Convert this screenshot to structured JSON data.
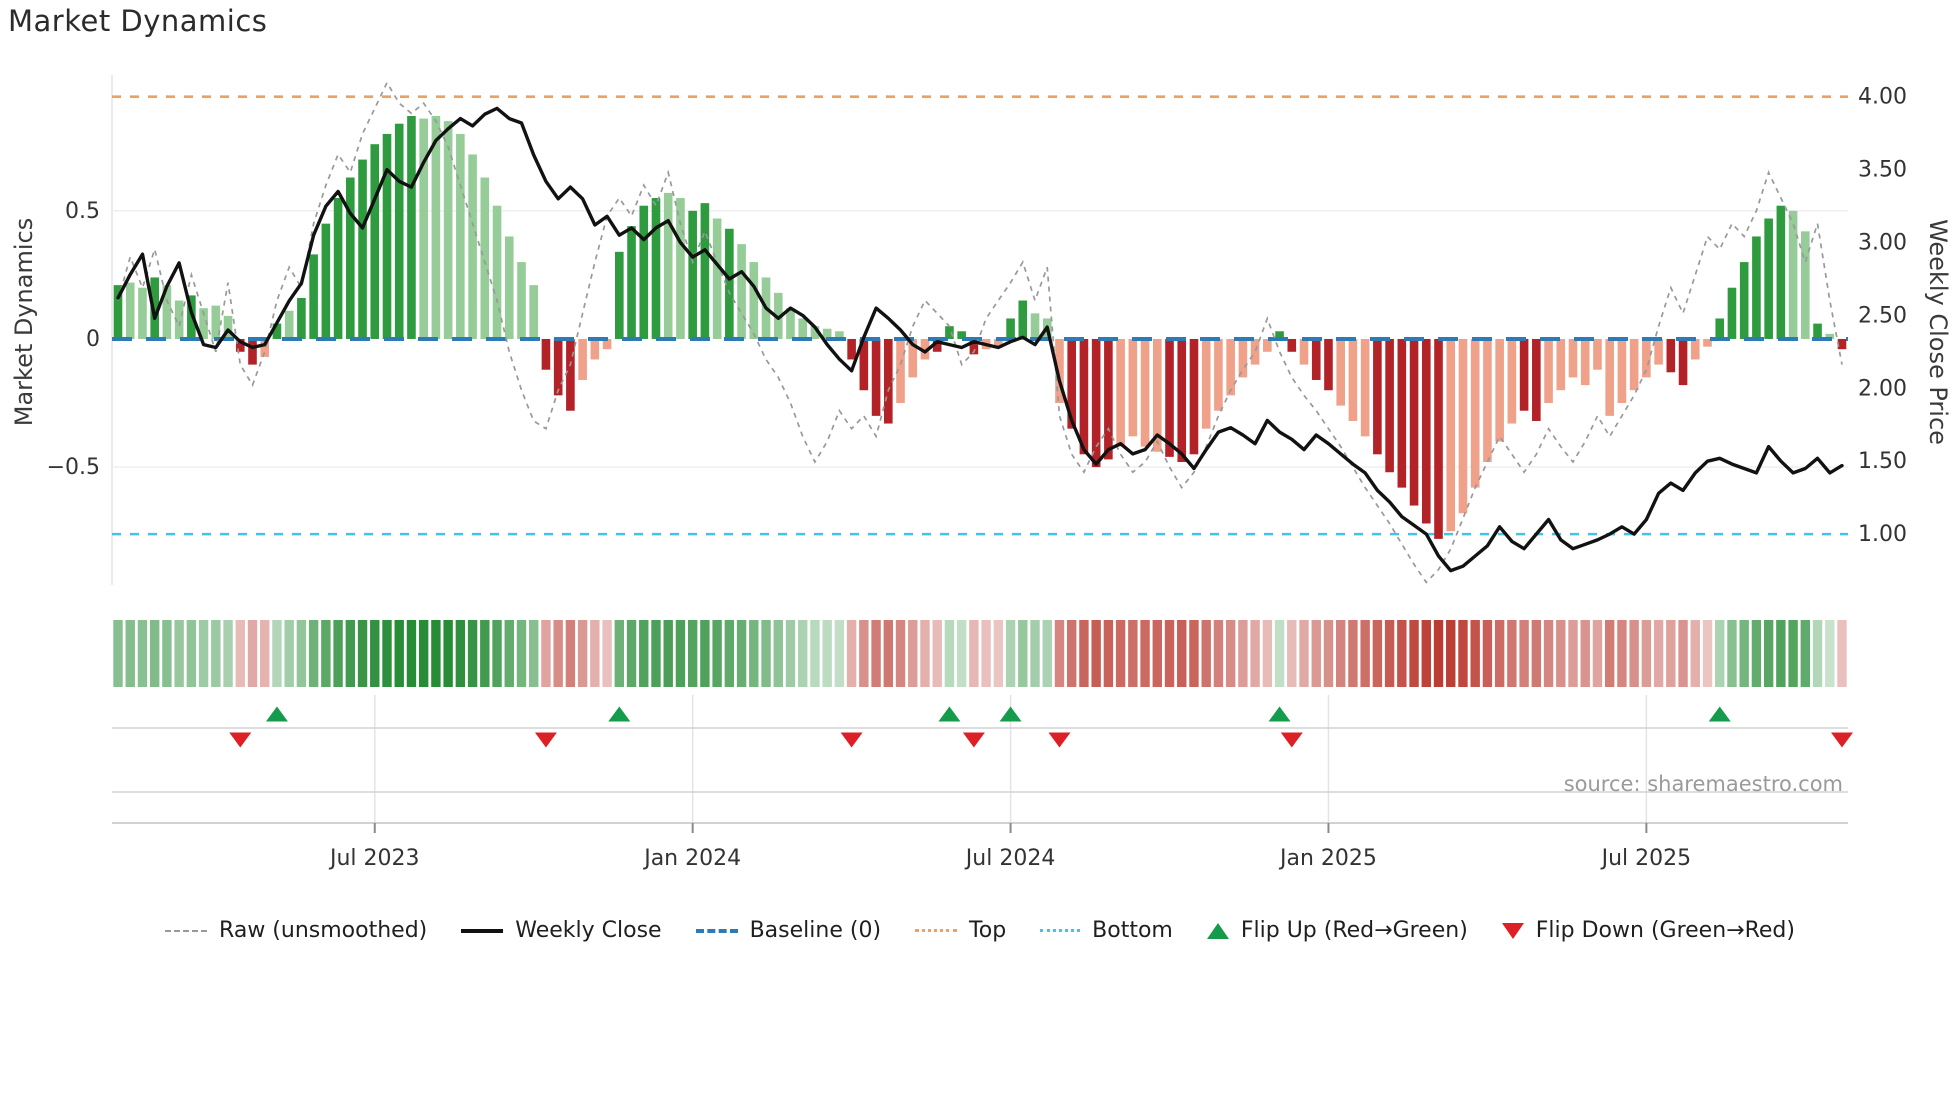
{
  "title": "Market Dynamics",
  "source_note": "source: sharemaestro.com",
  "axes": {
    "left_label": "Market Dynamics",
    "right_label": "Weekly Close Price",
    "left_ticks": [
      {
        "label": "0.5",
        "value": 0.5
      },
      {
        "label": "0",
        "value": 0
      },
      {
        "label": "−0.5",
        "value": -0.5
      }
    ],
    "right_ticks": [
      {
        "label": "4.00",
        "value": 4.0
      },
      {
        "label": "3.50",
        "value": 3.5
      },
      {
        "label": "3.00",
        "value": 3.0
      },
      {
        "label": "2.50",
        "value": 2.5
      },
      {
        "label": "2.00",
        "value": 2.0
      },
      {
        "label": "1.50",
        "value": 1.5
      },
      {
        "label": "1.00",
        "value": 1.0
      }
    ],
    "x_ticks": [
      {
        "label": "Jul 2023",
        "week": 21
      },
      {
        "label": "Jan 2024",
        "week": 47
      },
      {
        "label": "Jul 2024",
        "week": 73
      },
      {
        "label": "Jan 2025",
        "week": 99
      },
      {
        "label": "Jul 2025",
        "week": 125
      }
    ]
  },
  "legend": [
    {
      "label": "Raw (unsmoothed)",
      "type": "dashed-line",
      "color": "#999999"
    },
    {
      "label": "Weekly Close",
      "type": "solid-line",
      "color": "#111111"
    },
    {
      "label": "Baseline (0)",
      "type": "dashed-line",
      "color": "#2d7bb6"
    },
    {
      "label": "Top",
      "type": "dotted-line",
      "color": "#f0a05c"
    },
    {
      "label": "Bottom",
      "type": "dotted-line",
      "color": "#3ec6e8"
    },
    {
      "label": "Flip Up (Red→Green)",
      "type": "triangle-up",
      "color": "#149c4c"
    },
    {
      "label": "Flip Down (Green→Red)",
      "type": "triangle-down",
      "color": "#dd1f26"
    }
  ],
  "colors": {
    "bar_pos_strong": "#2e9b3f",
    "bar_pos_weak": "#95cc97",
    "bar_neg_strong": "#b22227",
    "bar_neg_weak": "#efa18a",
    "close_line": "#121212",
    "raw_line": "#999999",
    "baseline": "#2d7bb6",
    "top_line": "#f0a05c",
    "bottom_line": "#3ec6e8",
    "flip_up": "#149c4c",
    "flip_down": "#dd1f26",
    "grid": "#ededf1",
    "band_line": "#d2d2d2",
    "axis_line": "#c4c4c4",
    "tick_text": "#333333",
    "heat_pos_base": [
      40,
      140,
      55
    ],
    "heat_neg_base": [
      184,
      52,
      42
    ]
  },
  "chart_data": {
    "type": "bar+line",
    "frequency": "weekly",
    "weeks": 142,
    "left_axis_range": [
      -0.96,
      1.03
    ],
    "right_axis_range": [
      0.651,
      4.149
    ],
    "baseline_value": 0,
    "top_line_price": 4.0,
    "bottom_line_price": 1.0,
    "series": [
      {
        "name": "Dynamics bars",
        "axis": "left"
      },
      {
        "name": "Raw (unsmoothed)",
        "axis": "left"
      },
      {
        "name": "Weekly Close",
        "axis": "right"
      }
    ],
    "bars": [
      [
        0.21,
        1
      ],
      [
        0.22,
        0
      ],
      [
        0.2,
        0
      ],
      [
        0.24,
        1
      ],
      [
        0.21,
        0
      ],
      [
        0.15,
        0
      ],
      [
        0.17,
        1
      ],
      [
        0.12,
        0
      ],
      [
        0.13,
        0
      ],
      [
        0.09,
        0
      ],
      [
        -0.05,
        1
      ],
      [
        -0.1,
        1
      ],
      [
        -0.07,
        0
      ],
      [
        0.06,
        1
      ],
      [
        0.11,
        0
      ],
      [
        0.16,
        1
      ],
      [
        0.33,
        1
      ],
      [
        0.45,
        1
      ],
      [
        0.55,
        1
      ],
      [
        0.63,
        1
      ],
      [
        0.7,
        1
      ],
      [
        0.76,
        1
      ],
      [
        0.8,
        1
      ],
      [
        0.84,
        1
      ],
      [
        0.87,
        1
      ],
      [
        0.86,
        0
      ],
      [
        0.87,
        0
      ],
      [
        0.85,
        0
      ],
      [
        0.8,
        0
      ],
      [
        0.72,
        0
      ],
      [
        0.63,
        0
      ],
      [
        0.52,
        0
      ],
      [
        0.4,
        0
      ],
      [
        0.3,
        0
      ],
      [
        0.21,
        0
      ],
      [
        -0.12,
        1
      ],
      [
        -0.22,
        1
      ],
      [
        -0.28,
        1
      ],
      [
        -0.16,
        0
      ],
      [
        -0.08,
        0
      ],
      [
        -0.04,
        0
      ],
      [
        0.34,
        1
      ],
      [
        0.44,
        1
      ],
      [
        0.52,
        1
      ],
      [
        0.55,
        1
      ],
      [
        0.57,
        0
      ],
      [
        0.55,
        0
      ],
      [
        0.5,
        1
      ],
      [
        0.53,
        1
      ],
      [
        0.47,
        0
      ],
      [
        0.43,
        1
      ],
      [
        0.37,
        0
      ],
      [
        0.3,
        0
      ],
      [
        0.24,
        0
      ],
      [
        0.18,
        0
      ],
      [
        0.12,
        0
      ],
      [
        0.08,
        0
      ],
      [
        0.05,
        0
      ],
      [
        0.04,
        0
      ],
      [
        0.03,
        0
      ],
      [
        -0.08,
        1
      ],
      [
        -0.2,
        1
      ],
      [
        -0.3,
        1
      ],
      [
        -0.33,
        1
      ],
      [
        -0.25,
        0
      ],
      [
        -0.15,
        0
      ],
      [
        -0.08,
        0
      ],
      [
        -0.05,
        1
      ],
      [
        0.05,
        1
      ],
      [
        0.03,
        1
      ],
      [
        -0.06,
        1
      ],
      [
        -0.04,
        0
      ],
      [
        -0.03,
        0
      ],
      [
        0.08,
        1
      ],
      [
        0.15,
        1
      ],
      [
        0.1,
        0
      ],
      [
        0.08,
        0
      ],
      [
        -0.25,
        0
      ],
      [
        -0.35,
        1
      ],
      [
        -0.45,
        1
      ],
      [
        -0.5,
        1
      ],
      [
        -0.47,
        1
      ],
      [
        -0.42,
        0
      ],
      [
        -0.38,
        0
      ],
      [
        -0.42,
        0
      ],
      [
        -0.44,
        0
      ],
      [
        -0.46,
        1
      ],
      [
        -0.48,
        1
      ],
      [
        -0.45,
        1
      ],
      [
        -0.35,
        0
      ],
      [
        -0.28,
        0
      ],
      [
        -0.22,
        0
      ],
      [
        -0.15,
        0
      ],
      [
        -0.1,
        0
      ],
      [
        -0.05,
        0
      ],
      [
        0.03,
        1
      ],
      [
        -0.05,
        1
      ],
      [
        -0.1,
        0
      ],
      [
        -0.16,
        1
      ],
      [
        -0.2,
        1
      ],
      [
        -0.26,
        0
      ],
      [
        -0.32,
        0
      ],
      [
        -0.38,
        0
      ],
      [
        -0.45,
        1
      ],
      [
        -0.52,
        1
      ],
      [
        -0.58,
        1
      ],
      [
        -0.65,
        1
      ],
      [
        -0.72,
        1
      ],
      [
        -0.78,
        1
      ],
      [
        -0.75,
        0
      ],
      [
        -0.68,
        0
      ],
      [
        -0.58,
        0
      ],
      [
        -0.48,
        0
      ],
      [
        -0.4,
        0
      ],
      [
        -0.33,
        0
      ],
      [
        -0.28,
        1
      ],
      [
        -0.32,
        1
      ],
      [
        -0.25,
        0
      ],
      [
        -0.2,
        0
      ],
      [
        -0.15,
        0
      ],
      [
        -0.18,
        0
      ],
      [
        -0.12,
        0
      ],
      [
        -0.3,
        0
      ],
      [
        -0.25,
        0
      ],
      [
        -0.2,
        0
      ],
      [
        -0.15,
        0
      ],
      [
        -0.1,
        0
      ],
      [
        -0.13,
        1
      ],
      [
        -0.18,
        1
      ],
      [
        -0.08,
        0
      ],
      [
        -0.03,
        0
      ],
      [
        0.08,
        1
      ],
      [
        0.2,
        1
      ],
      [
        0.3,
        1
      ],
      [
        0.4,
        1
      ],
      [
        0.47,
        1
      ],
      [
        0.52,
        1
      ],
      [
        0.5,
        0
      ],
      [
        0.42,
        0
      ],
      [
        0.06,
        1
      ],
      [
        0.02,
        0
      ],
      [
        -0.04,
        1
      ]
    ],
    "close": [
      2.62,
      2.78,
      2.92,
      2.48,
      2.7,
      2.86,
      2.52,
      2.3,
      2.28,
      2.4,
      2.32,
      2.28,
      2.3,
      2.45,
      2.6,
      2.72,
      3.05,
      3.25,
      3.35,
      3.2,
      3.1,
      3.3,
      3.5,
      3.42,
      3.38,
      3.55,
      3.7,
      3.78,
      3.85,
      3.8,
      3.88,
      3.92,
      3.85,
      3.82,
      3.6,
      3.42,
      3.3,
      3.38,
      3.3,
      3.12,
      3.18,
      3.05,
      3.1,
      3.02,
      3.1,
      3.15,
      3.0,
      2.9,
      2.95,
      2.85,
      2.75,
      2.8,
      2.7,
      2.55,
      2.48,
      2.55,
      2.5,
      2.42,
      2.3,
      2.2,
      2.12,
      2.35,
      2.55,
      2.48,
      2.4,
      2.3,
      2.25,
      2.32,
      2.3,
      2.28,
      2.32,
      2.3,
      2.28,
      2.32,
      2.35,
      2.3,
      2.42,
      2.05,
      1.78,
      1.58,
      1.48,
      1.58,
      1.62,
      1.55,
      1.58,
      1.68,
      1.62,
      1.55,
      1.45,
      1.58,
      1.7,
      1.73,
      1.68,
      1.62,
      1.78,
      1.7,
      1.65,
      1.58,
      1.68,
      1.62,
      1.55,
      1.48,
      1.42,
      1.3,
      1.22,
      1.12,
      1.06,
      1.0,
      0.85,
      0.75,
      0.78,
      0.85,
      0.92,
      1.05,
      0.95,
      0.9,
      1.0,
      1.1,
      0.96,
      0.9,
      0.93,
      0.96,
      1.0,
      1.05,
      1.0,
      1.1,
      1.28,
      1.35,
      1.3,
      1.42,
      1.5,
      1.52,
      1.48,
      1.45,
      1.42,
      1.6,
      1.5,
      1.42,
      1.45,
      1.52,
      1.42,
      1.47
    ],
    "raw": [
      0.15,
      0.32,
      0.2,
      0.35,
      0.15,
      0.05,
      0.25,
      0.1,
      -0.05,
      0.22,
      -0.1,
      -0.18,
      -0.05,
      0.15,
      0.28,
      0.2,
      0.45,
      0.6,
      0.72,
      0.65,
      0.8,
      0.9,
      1.0,
      0.92,
      0.88,
      0.92,
      0.85,
      0.75,
      0.6,
      0.45,
      0.3,
      0.15,
      -0.05,
      -0.2,
      -0.32,
      -0.35,
      -0.2,
      -0.1,
      0.1,
      0.3,
      0.48,
      0.55,
      0.48,
      0.6,
      0.52,
      0.65,
      0.45,
      0.3,
      0.42,
      0.3,
      0.18,
      0.1,
      0.02,
      -0.08,
      -0.15,
      -0.25,
      -0.38,
      -0.48,
      -0.4,
      -0.28,
      -0.35,
      -0.3,
      -0.38,
      -0.2,
      -0.1,
      0.05,
      0.15,
      0.1,
      0.05,
      -0.1,
      -0.05,
      0.08,
      0.15,
      0.22,
      0.3,
      0.15,
      0.28,
      -0.3,
      -0.45,
      -0.52,
      -0.42,
      -0.35,
      -0.45,
      -0.52,
      -0.48,
      -0.4,
      -0.5,
      -0.58,
      -0.52,
      -0.42,
      -0.3,
      -0.2,
      -0.12,
      -0.05,
      0.08,
      -0.05,
      -0.15,
      -0.22,
      -0.28,
      -0.35,
      -0.42,
      -0.5,
      -0.58,
      -0.65,
      -0.72,
      -0.8,
      -0.88,
      -0.95,
      -0.9,
      -0.82,
      -0.7,
      -0.58,
      -0.48,
      -0.38,
      -0.45,
      -0.52,
      -0.45,
      -0.35,
      -0.42,
      -0.48,
      -0.4,
      -0.3,
      -0.38,
      -0.3,
      -0.22,
      -0.12,
      0.05,
      0.2,
      0.1,
      0.25,
      0.4,
      0.35,
      0.45,
      0.4,
      0.5,
      0.65,
      0.55,
      0.45,
      0.3,
      0.45,
      0.15,
      -0.1
    ],
    "flip_up_weeks": [
      13,
      41,
      68,
      73,
      95,
      131
    ],
    "flip_down_weeks": [
      10,
      35,
      60,
      70,
      77,
      96,
      141
    ]
  }
}
